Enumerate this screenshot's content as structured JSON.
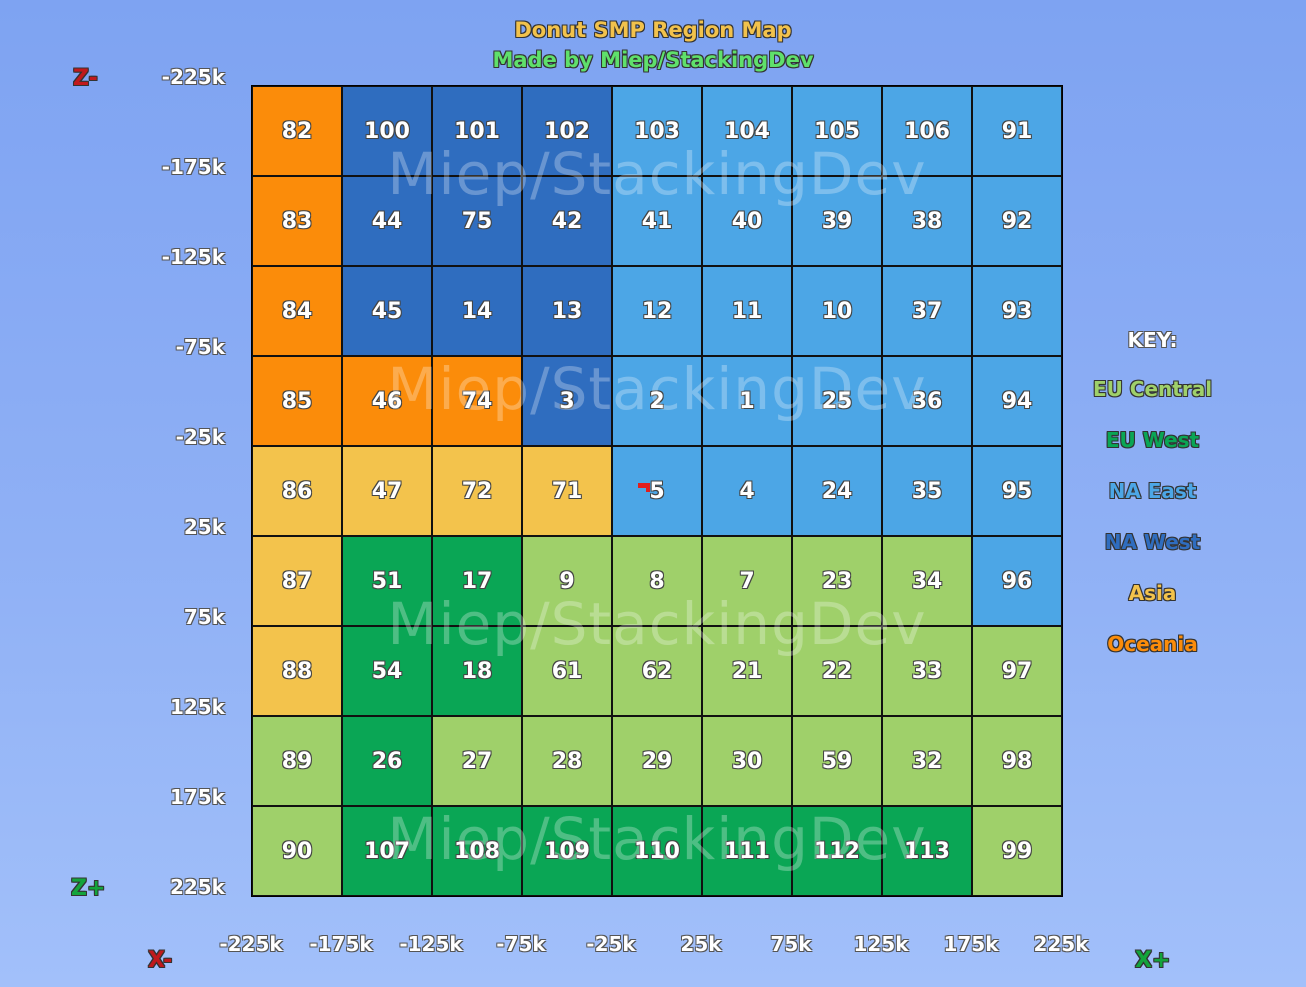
{
  "title": "Donut SMP Region Map",
  "subtitle": "Made by Miep/StackingDev",
  "watermark": "Miep/StackingDev",
  "direction_labels": {
    "z_minus": "Z-",
    "z_plus": "Z+",
    "x_minus": "X-",
    "x_plus": "X+"
  },
  "z_axis_labels": [
    "-225k",
    "-175k",
    "-125k",
    "-75k",
    "-25k",
    "25k",
    "75k",
    "125k",
    "175k",
    "225k"
  ],
  "x_axis_labels": [
    "-225k",
    "-175k",
    "-125k",
    "-75k",
    "-25k",
    "25k",
    "75k",
    "125k",
    "175k",
    "225k"
  ],
  "regions": {
    "EU Central": "#9fd06a",
    "EU West": "#0aa655",
    "NA East": "#4ca6e6",
    "NA West": "#2f6dbf",
    "Asia": "#f3c34c",
    "Oceania": "#fb8c0a"
  },
  "key": {
    "title": "KEY:",
    "items": [
      {
        "label": "EU Central",
        "color": "#9fd06a"
      },
      {
        "label": "EU West",
        "color": "#0aa655"
      },
      {
        "label": "NA East",
        "color": "#4ca6e6"
      },
      {
        "label": "NA West",
        "color": "#2f6dbf"
      },
      {
        "label": "Asia",
        "color": "#f3c34c"
      },
      {
        "label": "Oceania",
        "color": "#fb8c0a"
      }
    ]
  },
  "grid": [
    [
      [
        "82",
        "Oceania"
      ],
      [
        "100",
        "NA West"
      ],
      [
        "101",
        "NA West"
      ],
      [
        "102",
        "NA West"
      ],
      [
        "103",
        "NA East"
      ],
      [
        "104",
        "NA East"
      ],
      [
        "105",
        "NA East"
      ],
      [
        "106",
        "NA East"
      ],
      [
        "91",
        "NA East"
      ]
    ],
    [
      [
        "83",
        "Oceania"
      ],
      [
        "44",
        "NA West"
      ],
      [
        "75",
        "NA West"
      ],
      [
        "42",
        "NA West"
      ],
      [
        "41",
        "NA East"
      ],
      [
        "40",
        "NA East"
      ],
      [
        "39",
        "NA East"
      ],
      [
        "38",
        "NA East"
      ],
      [
        "92",
        "NA East"
      ]
    ],
    [
      [
        "84",
        "Oceania"
      ],
      [
        "45",
        "NA West"
      ],
      [
        "14",
        "NA West"
      ],
      [
        "13",
        "NA West"
      ],
      [
        "12",
        "NA East"
      ],
      [
        "11",
        "NA East"
      ],
      [
        "10",
        "NA East"
      ],
      [
        "37",
        "NA East"
      ],
      [
        "93",
        "NA East"
      ]
    ],
    [
      [
        "85",
        "Oceania"
      ],
      [
        "46",
        "Oceania"
      ],
      [
        "74",
        "Oceania"
      ],
      [
        "3",
        "NA West"
      ],
      [
        "2",
        "NA East"
      ],
      [
        "1",
        "NA East"
      ],
      [
        "25",
        "NA East"
      ],
      [
        "36",
        "NA East"
      ],
      [
        "94",
        "NA East"
      ]
    ],
    [
      [
        "86",
        "Asia"
      ],
      [
        "47",
        "Asia"
      ],
      [
        "72",
        "Asia"
      ],
      [
        "71",
        "Asia"
      ],
      [
        "5",
        "NA East"
      ],
      [
        "4",
        "NA East"
      ],
      [
        "24",
        "NA East"
      ],
      [
        "35",
        "NA East"
      ],
      [
        "95",
        "NA East"
      ]
    ],
    [
      [
        "87",
        "Asia"
      ],
      [
        "51",
        "EU West"
      ],
      [
        "17",
        "EU West"
      ],
      [
        "9",
        "EU Central"
      ],
      [
        "8",
        "EU Central"
      ],
      [
        "7",
        "EU Central"
      ],
      [
        "23",
        "EU Central"
      ],
      [
        "34",
        "EU Central"
      ],
      [
        "96",
        "NA East"
      ]
    ],
    [
      [
        "88",
        "Asia"
      ],
      [
        "54",
        "EU West"
      ],
      [
        "18",
        "EU West"
      ],
      [
        "61",
        "EU Central"
      ],
      [
        "62",
        "EU Central"
      ],
      [
        "21",
        "EU Central"
      ],
      [
        "22",
        "EU Central"
      ],
      [
        "33",
        "EU Central"
      ],
      [
        "97",
        "EU Central"
      ]
    ],
    [
      [
        "89",
        "EU Central"
      ],
      [
        "26",
        "EU West"
      ],
      [
        "27",
        "EU Central"
      ],
      [
        "28",
        "EU Central"
      ],
      [
        "29",
        "EU Central"
      ],
      [
        "30",
        "EU Central"
      ],
      [
        "59",
        "EU Central"
      ],
      [
        "32",
        "EU Central"
      ],
      [
        "98",
        "EU Central"
      ]
    ],
    [
      [
        "90",
        "EU Central"
      ],
      [
        "107",
        "EU West"
      ],
      [
        "108",
        "EU West"
      ],
      [
        "109",
        "EU West"
      ],
      [
        "110",
        "EU West"
      ],
      [
        "111",
        "EU West"
      ],
      [
        "112",
        "EU West"
      ],
      [
        "113",
        "EU West"
      ],
      [
        "99",
        "EU Central"
      ]
    ]
  ],
  "spawn_marker_region": "5"
}
